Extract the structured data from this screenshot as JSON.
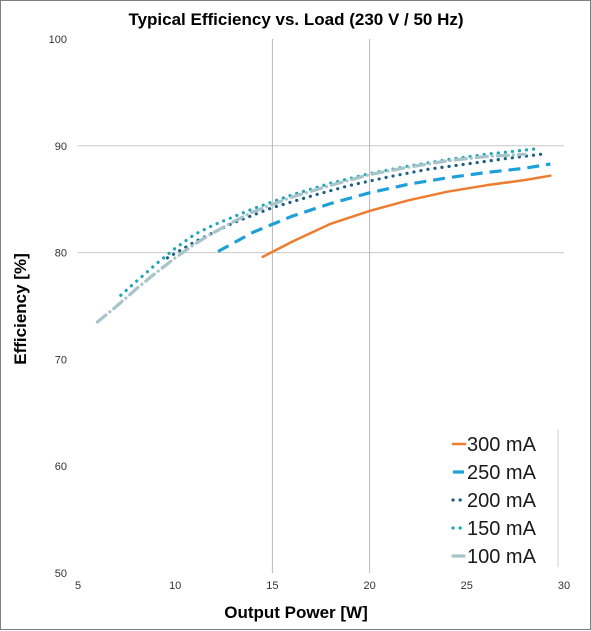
{
  "chart_data": {
    "type": "line",
    "title": "Typical Efficiency vs. Load (230 V / 50 Hz)",
    "xlabel": "Output Power [W]",
    "ylabel": "Efficiency [%]",
    "xlim": [
      5,
      30
    ],
    "ylim": [
      50,
      100
    ],
    "xticks": [
      5,
      10,
      15,
      20,
      25,
      30
    ],
    "yticks": [
      50,
      60,
      70,
      80,
      90,
      100
    ],
    "x_gridlines": [
      15,
      20
    ],
    "y_gridlines": [
      80,
      90
    ],
    "legend_position": "bottom-right",
    "series": [
      {
        "name": "300 mA",
        "color": "#ed7d31",
        "style": "solid",
        "points": [
          [
            14.5,
            79.6
          ],
          [
            16,
            81.0
          ],
          [
            18,
            82.7
          ],
          [
            20,
            83.9
          ],
          [
            22,
            84.9
          ],
          [
            24,
            85.7
          ],
          [
            26,
            86.3
          ],
          [
            28,
            86.8
          ],
          [
            29.3,
            87.2
          ]
        ]
      },
      {
        "name": "250 mA",
        "color": "#1f9fd8",
        "style": "dashed",
        "points": [
          [
            12.2,
            80.1
          ],
          [
            14,
            81.9
          ],
          [
            16,
            83.4
          ],
          [
            18,
            84.6
          ],
          [
            20,
            85.6
          ],
          [
            22,
            86.4
          ],
          [
            24,
            87.0
          ],
          [
            26,
            87.5
          ],
          [
            28,
            87.9
          ],
          [
            29.3,
            88.3
          ]
        ]
      },
      {
        "name": "200 mA",
        "color": "#1f5f7f",
        "style": "dotted",
        "points": [
          [
            9.6,
            79.5
          ],
          [
            11,
            81.0
          ],
          [
            13,
            82.8
          ],
          [
            15,
            84.2
          ],
          [
            17,
            85.3
          ],
          [
            19,
            86.3
          ],
          [
            21,
            87.1
          ],
          [
            23,
            87.8
          ],
          [
            25,
            88.3
          ],
          [
            27,
            88.8
          ],
          [
            28.8,
            89.2
          ]
        ]
      },
      {
        "name": "150 mA",
        "color": "#21a6b4",
        "style": "dotted",
        "points": [
          [
            7.2,
            76.0
          ],
          [
            8,
            77.3
          ],
          [
            9,
            78.9
          ],
          [
            10,
            80.4
          ],
          [
            11,
            81.7
          ],
          [
            12,
            82.6
          ],
          [
            14,
            84.1
          ],
          [
            16,
            85.4
          ],
          [
            18,
            86.5
          ],
          [
            20,
            87.4
          ],
          [
            22,
            88.1
          ],
          [
            24,
            88.7
          ],
          [
            26,
            89.2
          ],
          [
            28.5,
            89.7
          ]
        ]
      },
      {
        "name": "100 mA",
        "color": "#a8c4cb",
        "style": "dashdot",
        "points": [
          [
            6.0,
            73.5
          ],
          [
            7,
            75.0
          ],
          [
            8,
            76.6
          ],
          [
            9,
            78.1
          ],
          [
            10,
            79.5
          ],
          [
            11,
            80.8
          ],
          [
            12,
            81.9
          ],
          [
            13,
            82.9
          ],
          [
            14,
            83.8
          ],
          [
            15,
            84.5
          ],
          [
            16,
            85.2
          ],
          [
            18,
            86.3
          ],
          [
            20,
            87.3
          ],
          [
            22,
            88.0
          ],
          [
            24,
            88.6
          ],
          [
            26,
            89.0
          ],
          [
            28,
            89.2
          ]
        ]
      }
    ]
  }
}
